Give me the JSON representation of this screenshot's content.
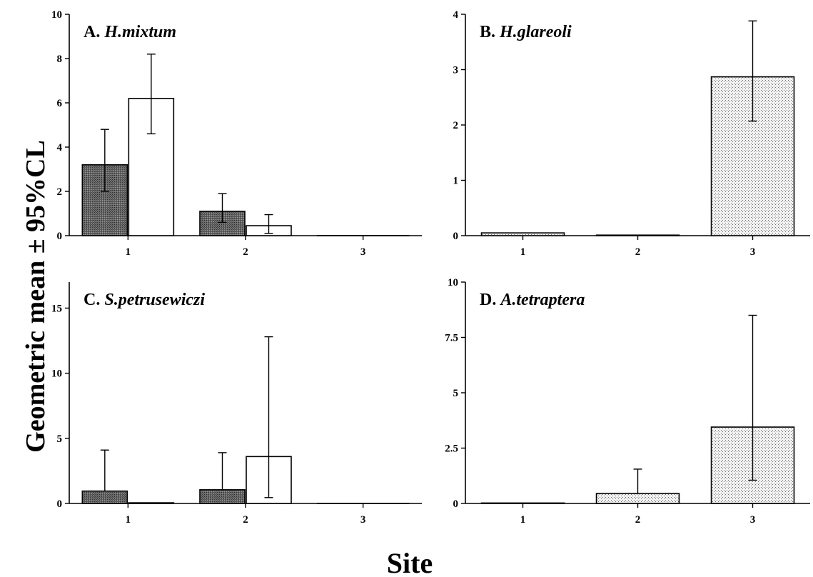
{
  "ylabel": "Geometric mean ± 95%CL",
  "xlabel": "Site",
  "chart_data": [
    {
      "type": "bar",
      "panel": "A.",
      "title": "H.mixtum",
      "categories": [
        "1",
        "2",
        "3"
      ],
      "ylim": [
        0,
        10
      ],
      "yticks": [
        0,
        2,
        4,
        6,
        8,
        10
      ],
      "series": [
        {
          "fill": "dark",
          "values": [
            3.2,
            1.1,
            0
          ],
          "lower": [
            2.0,
            0.6,
            0
          ],
          "upper": [
            4.8,
            1.9,
            0
          ]
        },
        {
          "fill": "white",
          "values": [
            6.2,
            0.45,
            0
          ],
          "lower": [
            4.6,
            0.1,
            0
          ],
          "upper": [
            8.2,
            0.95,
            0
          ]
        }
      ]
    },
    {
      "type": "bar",
      "panel": "B.",
      "title": "H.glareoli",
      "categories": [
        "1",
        "2",
        "3"
      ],
      "ylim": [
        0,
        4
      ],
      "yticks": [
        0,
        1,
        2,
        3,
        4
      ],
      "series": [
        {
          "fill": "dotted",
          "values": [
            0.05,
            0.01,
            2.87
          ],
          "lower": [
            0.05,
            0.01,
            2.07
          ],
          "upper": [
            0.05,
            0.01,
            3.88
          ]
        }
      ]
    },
    {
      "type": "bar",
      "panel": "C.",
      "title": "S.petrusewiczi",
      "categories": [
        "1",
        "2",
        "3"
      ],
      "ylim": [
        0,
        17
      ],
      "yticks": [
        0,
        5,
        10,
        15
      ],
      "series": [
        {
          "fill": "dark",
          "values": [
            0.95,
            1.05,
            0
          ],
          "lower": [
            0.95,
            1.05,
            0
          ],
          "upper": [
            4.1,
            3.9,
            0
          ]
        },
        {
          "fill": "white",
          "values": [
            0.05,
            3.6,
            0
          ],
          "lower": [
            0.05,
            0.45,
            0
          ],
          "upper": [
            0.05,
            12.8,
            0
          ]
        }
      ]
    },
    {
      "type": "bar",
      "panel": "D.",
      "title": "A.tetraptera",
      "categories": [
        "1",
        "2",
        "3"
      ],
      "ylim": [
        0,
        10
      ],
      "yticks": [
        "0",
        "2.5",
        "5",
        "7.5",
        "10"
      ],
      "series": [
        {
          "fill": "dotted",
          "values": [
            0.02,
            0.45,
            3.45
          ],
          "lower": [
            0.02,
            0.45,
            1.05
          ],
          "upper": [
            0.02,
            1.55,
            8.5
          ]
        }
      ]
    }
  ]
}
